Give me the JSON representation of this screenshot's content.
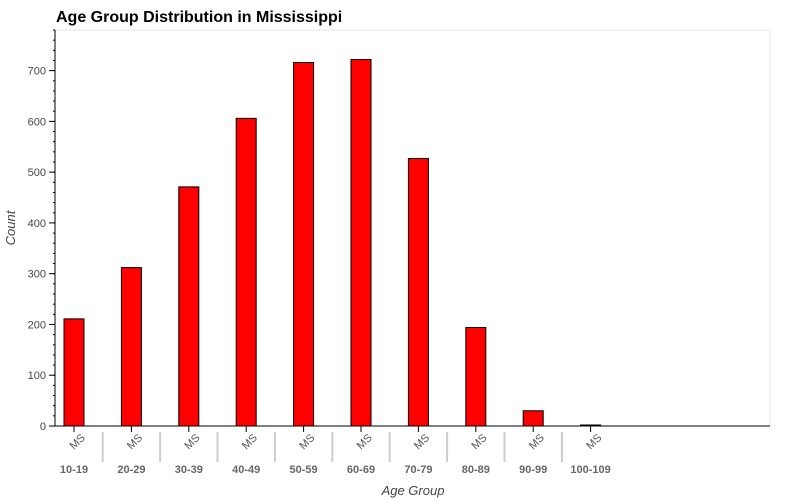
{
  "chart_data": {
    "type": "bar",
    "title": "Age Group Distribution in Mississippi",
    "xlabel": "Age Group",
    "ylabel": "Count",
    "subcategory": "MS",
    "categories": [
      "10-19",
      "20-29",
      "30-39",
      "40-49",
      "50-59",
      "60-69",
      "70-79",
      "80-89",
      "90-99",
      "100-109"
    ],
    "values": [
      211,
      312,
      471,
      606,
      716,
      722,
      527,
      194,
      30,
      2
    ],
    "ylim": [
      0,
      780
    ],
    "yticks": [
      0,
      100,
      200,
      300,
      400,
      500,
      600,
      700
    ],
    "bar_color": "#ff0000",
    "bar_outline": "#000000",
    "grid": false,
    "legend": "none"
  }
}
